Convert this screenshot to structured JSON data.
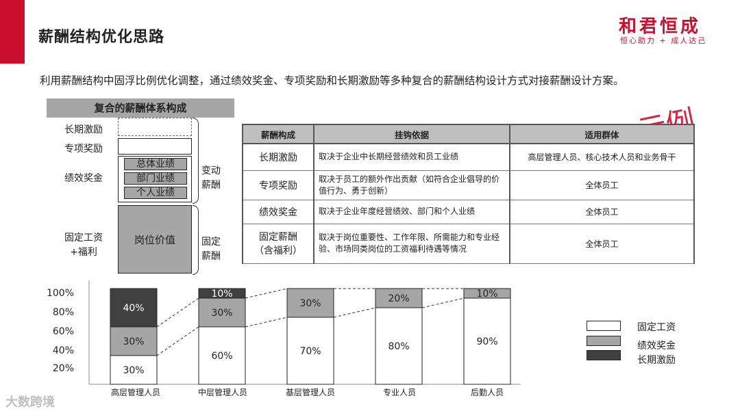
{
  "header": {
    "title": "薪酬结构优化思路",
    "logo_main": "和君恒成",
    "logo_tagline": "恒心助力 + 成人达己"
  },
  "intro": "利用薪酬结构中固浮比例优化调整，通过绩效奖金、专项奖励和长期激励等多种复合的薪酬结构设计方式对接薪酬设计方案。",
  "composition": {
    "header": "复合的薪酬体系构成",
    "labels": {
      "long_term": "长期激励",
      "special": "专项奖励",
      "performance": "绩效奖金",
      "fixed": "固定工资\n+福利"
    },
    "perf_items": [
      "总体业绩",
      "部门业绩",
      "个人业绩"
    ],
    "post_value": "岗位价值",
    "variable": "变动\n薪酬",
    "fixed_side": "固定\n薪酬"
  },
  "stamp": "示例",
  "table": {
    "headers": [
      "薪酬构成",
      "挂钩依据",
      "适用群体"
    ],
    "rows": [
      {
        "name": "长期激励",
        "basis": "取决于企业中长期经营绩效和员工业绩",
        "group": "高层管理人员、核心技术人员和业务骨干"
      },
      {
        "name": "专项奖励",
        "basis": "取决于员工的额外作出贡献（如符合企业倡导的价值行为、勇于创新）",
        "group": "全体员工"
      },
      {
        "name": "绩效奖金",
        "basis": "取决于企业年度经营绩效、部门和个人业绩",
        "group": "全体员工"
      },
      {
        "name": "固定薪酬\n（含福利）",
        "basis": "取决于岗位重要性、工作年限、所需能力和专业经验、市场同类岗位的工资福利待遇等情况",
        "group": "全体员工"
      }
    ]
  },
  "chart_data": {
    "type": "bar",
    "stacked": true,
    "categories": [
      "高层管理人员",
      "中层管理人员",
      "基层管理人员",
      "专业人员",
      "后勤人员"
    ],
    "series": [
      {
        "name": "固定工资",
        "values": [
          30,
          60,
          70,
          80,
          90
        ],
        "color": "#ffffff"
      },
      {
        "name": "绩效奖金",
        "values": [
          30,
          30,
          30,
          20,
          10
        ],
        "color": "#a6a6a6"
      },
      {
        "name": "长期激励",
        "values": [
          40,
          10,
          0,
          0,
          0
        ],
        "color": "#404040"
      }
    ],
    "yticks": [
      "100%",
      "80%",
      "60%",
      "40%",
      "20%"
    ],
    "ylim": [
      0,
      100
    ],
    "legend_position": "right"
  },
  "watermark": "大数跨境"
}
